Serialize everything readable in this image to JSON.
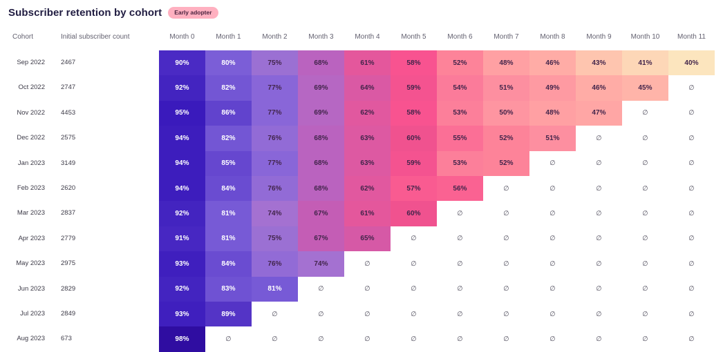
{
  "chart_data": {
    "type": "heatmap",
    "title": "Subscriber retention by cohort",
    "badge": "Early adopter",
    "col_headers": {
      "cohort": "Cohort",
      "count": "Initial subscriber count"
    },
    "x_labels": [
      "Month 0",
      "Month 1",
      "Month 2",
      "Month 3",
      "Month 4",
      "Month 5",
      "Month 6",
      "Month 7",
      "Month 8",
      "Month 9",
      "Month 10",
      "Month 11"
    ],
    "value_suffix": "%",
    "empty_symbol": "∅",
    "rows": [
      {
        "cohort": "Sep 2022",
        "initial_count": "2467",
        "retention_pct": [
          90,
          80,
          75,
          68,
          61,
          58,
          52,
          48,
          46,
          43,
          41,
          40
        ]
      },
      {
        "cohort": "Oct 2022",
        "initial_count": "2747",
        "retention_pct": [
          92,
          82,
          77,
          69,
          64,
          59,
          54,
          51,
          49,
          46,
          45,
          null
        ]
      },
      {
        "cohort": "Nov 2022",
        "initial_count": "4453",
        "retention_pct": [
          95,
          86,
          77,
          69,
          62,
          58,
          53,
          50,
          48,
          47,
          null,
          null
        ]
      },
      {
        "cohort": "Dec 2022",
        "initial_count": "2575",
        "retention_pct": [
          94,
          82,
          76,
          68,
          63,
          60,
          55,
          52,
          51,
          null,
          null,
          null
        ]
      },
      {
        "cohort": "Jan 2023",
        "initial_count": "3149",
        "retention_pct": [
          94,
          85,
          77,
          68,
          63,
          59,
          53,
          52,
          null,
          null,
          null,
          null
        ]
      },
      {
        "cohort": "Feb 2023",
        "initial_count": "2620",
        "retention_pct": [
          94,
          84,
          76,
          68,
          62,
          57,
          56,
          null,
          null,
          null,
          null,
          null
        ]
      },
      {
        "cohort": "Mar 2023",
        "initial_count": "2837",
        "retention_pct": [
          92,
          81,
          74,
          67,
          61,
          60,
          null,
          null,
          null,
          null,
          null,
          null
        ]
      },
      {
        "cohort": "Apr 2023",
        "initial_count": "2779",
        "retention_pct": [
          91,
          81,
          75,
          67,
          65,
          null,
          null,
          null,
          null,
          null,
          null,
          null
        ]
      },
      {
        "cohort": "May 2023",
        "initial_count": "2975",
        "retention_pct": [
          93,
          84,
          76,
          74,
          null,
          null,
          null,
          null,
          null,
          null,
          null,
          null
        ]
      },
      {
        "cohort": "Jun 2023",
        "initial_count": "2829",
        "retention_pct": [
          92,
          83,
          81,
          null,
          null,
          null,
          null,
          null,
          null,
          null,
          null,
          null
        ]
      },
      {
        "cohort": "Jul 2023",
        "initial_count": "2849",
        "retention_pct": [
          93,
          89,
          null,
          null,
          null,
          null,
          null,
          null,
          null,
          null,
          null,
          null
        ]
      },
      {
        "cohort": "Aug 2023",
        "initial_count": "673",
        "retention_pct": [
          98,
          null,
          null,
          null,
          null,
          null,
          null,
          null,
          null,
          null,
          null,
          null
        ]
      }
    ],
    "legend_position": "none",
    "grid": false,
    "color_ramp": [
      [
        40,
        "#fce5be"
      ],
      [
        41,
        "#fdd7b7"
      ],
      [
        43,
        "#fec5af"
      ],
      [
        45,
        "#ffb4a9"
      ],
      [
        46,
        "#ffaca6"
      ],
      [
        48,
        "#ffa0a3"
      ],
      [
        49,
        "#fe9aa2"
      ],
      [
        51,
        "#fd8fa0"
      ],
      [
        52,
        "#fd8399"
      ],
      [
        54,
        "#fb7b9a"
      ],
      [
        56,
        "#fa6292"
      ],
      [
        58,
        "#f85390"
      ],
      [
        60,
        "#f0528f"
      ],
      [
        61,
        "#e4579c"
      ],
      [
        63,
        "#dd59a2"
      ],
      [
        65,
        "#d659a6"
      ],
      [
        67,
        "#c45db5"
      ],
      [
        68,
        "#ba63bf"
      ],
      [
        70,
        "#b16ac6"
      ],
      [
        74,
        "#a471d1"
      ],
      [
        75,
        "#9b70d3"
      ],
      [
        76,
        "#926bd6"
      ],
      [
        77,
        "#8966d8"
      ],
      [
        80,
        "#7b5ed7"
      ],
      [
        81,
        "#775ad6"
      ],
      [
        82,
        "#7356d4"
      ],
      [
        83,
        "#6f52d3"
      ],
      [
        84,
        "#6a4cd1"
      ],
      [
        85,
        "#6647cf"
      ],
      [
        86,
        "#6143cd"
      ],
      [
        89,
        "#5434c6"
      ],
      [
        90,
        "#4a2ac4"
      ],
      [
        92,
        "#4324c0"
      ],
      [
        93,
        "#3f1fbe"
      ],
      [
        95,
        "#3a1abc"
      ],
      [
        98,
        "#2f0da1"
      ]
    ],
    "text_color_threshold": 80,
    "cell_text_light": "#ffffff",
    "cell_text_dark": "#41244a"
  }
}
